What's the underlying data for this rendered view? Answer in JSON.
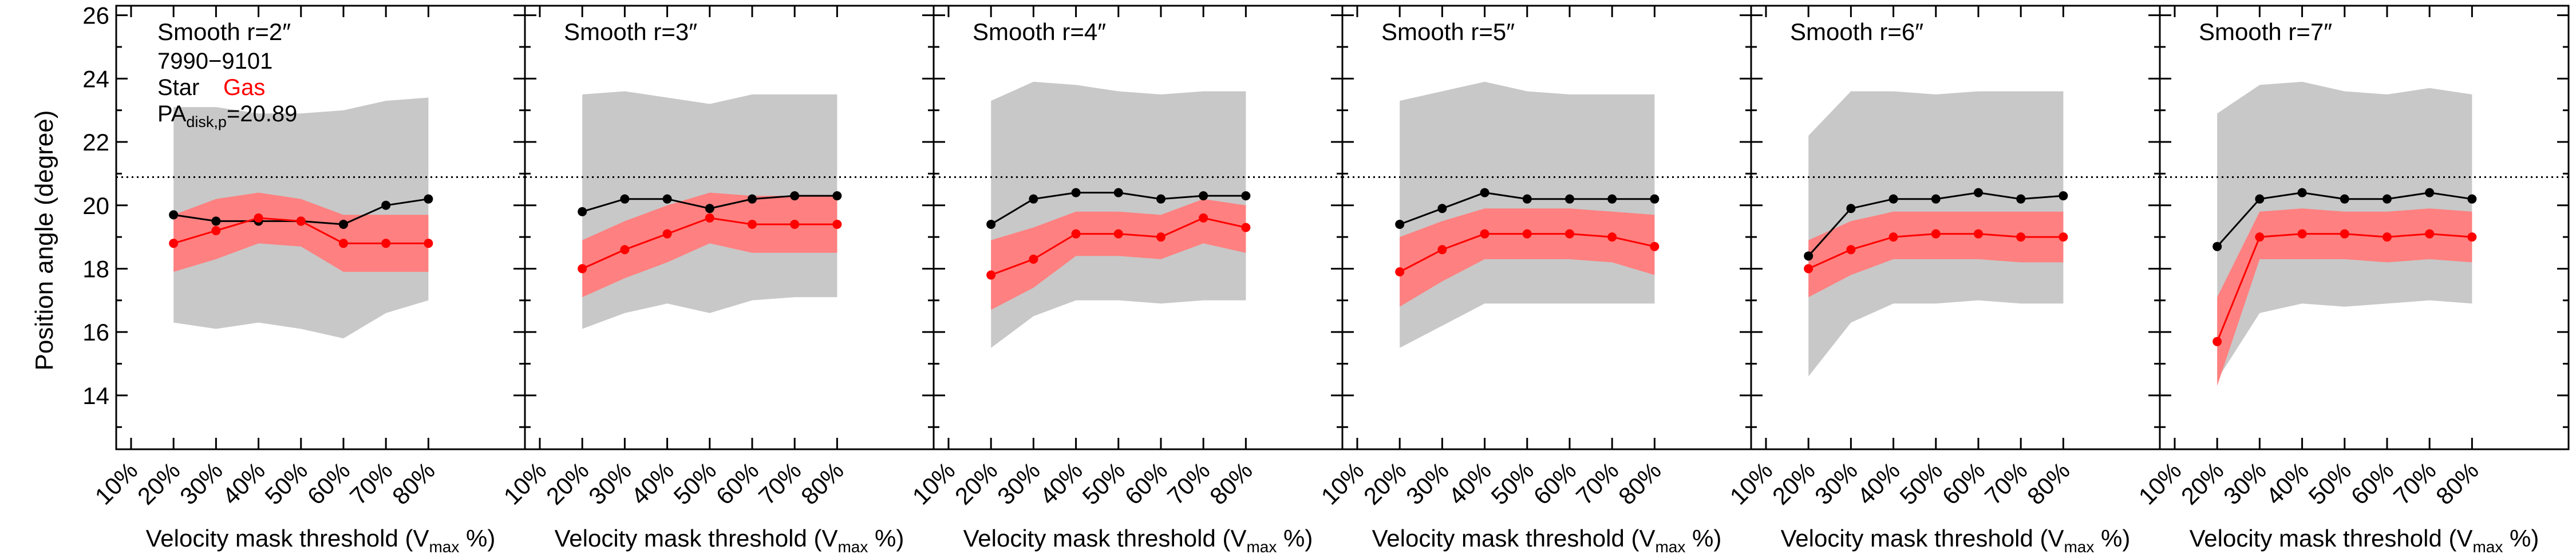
{
  "figure": {
    "ylabel": "Position angle (degree)",
    "xlabel_main": "Velocity mask threshold (V",
    "xlabel_sub": "max",
    "xlabel_tail": " %)",
    "annotation": {
      "id_label": "7990−9101",
      "legend_star": "Star",
      "legend_gas": "Gas",
      "pa_main": "PA",
      "pa_sub": "disk,p",
      "pa_value": "=20.89"
    },
    "colors": {
      "star": "#000000",
      "gas": "#ff0000",
      "star_band": "#c8c8c8",
      "gas_band": "#ff8080"
    }
  },
  "chart_data": [
    {
      "type": "line",
      "title": "Smooth r=2″",
      "categories": [
        "10%",
        "20%",
        "30%",
        "40%",
        "50%",
        "60%",
        "70%",
        "80%"
      ],
      "ylim": [
        12.3,
        26.3
      ],
      "yticks": [
        14,
        16,
        18,
        20,
        22,
        24,
        26
      ],
      "reference_line": 20.89,
      "series": [
        {
          "name": "Star",
          "x": [
            20,
            30,
            40,
            50,
            60,
            70,
            80
          ],
          "values": [
            19.7,
            19.5,
            19.5,
            19.5,
            19.4,
            20.0,
            20.2
          ],
          "lower": [
            16.3,
            16.1,
            16.3,
            16.1,
            15.8,
            16.6,
            17.0
          ],
          "upper": [
            23.1,
            23.1,
            22.9,
            22.9,
            23.0,
            23.3,
            23.4
          ]
        },
        {
          "name": "Gas",
          "x": [
            20,
            30,
            40,
            50,
            60,
            70,
            80
          ],
          "values": [
            18.8,
            19.2,
            19.6,
            19.5,
            18.8,
            18.8,
            18.8
          ],
          "lower": [
            17.9,
            18.3,
            18.8,
            18.7,
            17.9,
            17.9,
            17.9
          ],
          "upper": [
            19.7,
            20.2,
            20.4,
            20.2,
            19.7,
            19.7,
            19.7
          ]
        }
      ]
    },
    {
      "type": "line",
      "title": "Smooth r=3″",
      "categories": [
        "10%",
        "20%",
        "30%",
        "40%",
        "50%",
        "60%",
        "70%",
        "80%"
      ],
      "ylim": [
        12.3,
        26.3
      ],
      "yticks": [
        14,
        16,
        18,
        20,
        22,
        24,
        26
      ],
      "reference_line": 20.89,
      "series": [
        {
          "name": "Star",
          "x": [
            20,
            30,
            40,
            50,
            60,
            70,
            80
          ],
          "values": [
            19.8,
            20.2,
            20.2,
            19.9,
            20.2,
            20.3,
            20.3
          ],
          "lower": [
            16.1,
            16.6,
            16.9,
            16.6,
            17.0,
            17.1,
            17.1
          ],
          "upper": [
            23.5,
            23.6,
            23.4,
            23.2,
            23.5,
            23.5,
            23.5
          ]
        },
        {
          "name": "Gas",
          "x": [
            20,
            30,
            40,
            50,
            60,
            70,
            80
          ],
          "values": [
            18.0,
            18.6,
            19.1,
            19.6,
            19.4,
            19.4,
            19.4
          ],
          "lower": [
            17.1,
            17.7,
            18.2,
            18.8,
            18.5,
            18.5,
            18.5
          ],
          "upper": [
            18.9,
            19.5,
            20.0,
            20.4,
            20.3,
            20.3,
            20.3
          ]
        }
      ]
    },
    {
      "type": "line",
      "title": "Smooth r=4″",
      "categories": [
        "10%",
        "20%",
        "30%",
        "40%",
        "50%",
        "60%",
        "70%",
        "80%"
      ],
      "ylim": [
        12.3,
        26.3
      ],
      "yticks": [
        14,
        16,
        18,
        20,
        22,
        24,
        26
      ],
      "reference_line": 20.89,
      "series": [
        {
          "name": "Star",
          "x": [
            20,
            30,
            40,
            50,
            60,
            70,
            80
          ],
          "values": [
            19.4,
            20.2,
            20.4,
            20.4,
            20.2,
            20.3,
            20.3
          ],
          "lower": [
            15.5,
            16.5,
            17.0,
            17.0,
            16.9,
            17.0,
            17.0
          ],
          "upper": [
            23.3,
            23.9,
            23.8,
            23.6,
            23.5,
            23.6,
            23.6
          ]
        },
        {
          "name": "Gas",
          "x": [
            20,
            30,
            40,
            50,
            60,
            70,
            80
          ],
          "values": [
            17.8,
            18.3,
            19.1,
            19.1,
            19.0,
            19.6,
            19.3
          ],
          "lower": [
            16.7,
            17.4,
            18.4,
            18.4,
            18.3,
            18.8,
            18.5
          ],
          "upper": [
            18.9,
            19.3,
            19.8,
            19.8,
            19.7,
            20.2,
            20.0
          ]
        }
      ]
    },
    {
      "type": "line",
      "title": "Smooth r=5″",
      "categories": [
        "10%",
        "20%",
        "30%",
        "40%",
        "50%",
        "60%",
        "70%",
        "80%"
      ],
      "ylim": [
        12.3,
        26.3
      ],
      "yticks": [
        14,
        16,
        18,
        20,
        22,
        24,
        26
      ],
      "reference_line": 20.89,
      "series": [
        {
          "name": "Star",
          "x": [
            20,
            30,
            40,
            50,
            60,
            70,
            80
          ],
          "values": [
            19.4,
            19.9,
            20.4,
            20.2,
            20.2,
            20.2,
            20.2
          ],
          "lower": [
            15.5,
            16.2,
            16.9,
            16.9,
            16.9,
            16.9,
            16.9
          ],
          "upper": [
            23.3,
            23.6,
            23.9,
            23.6,
            23.5,
            23.5,
            23.5
          ]
        },
        {
          "name": "Gas",
          "x": [
            20,
            30,
            40,
            50,
            60,
            70,
            80
          ],
          "values": [
            17.9,
            18.6,
            19.1,
            19.1,
            19.1,
            19.0,
            18.7
          ],
          "lower": [
            16.8,
            17.6,
            18.3,
            18.3,
            18.3,
            18.2,
            17.8
          ],
          "upper": [
            19.0,
            19.5,
            19.9,
            19.9,
            19.9,
            19.8,
            19.7
          ]
        }
      ]
    },
    {
      "type": "line",
      "title": "Smooth r=6″",
      "categories": [
        "10%",
        "20%",
        "30%",
        "40%",
        "50%",
        "60%",
        "70%",
        "80%"
      ],
      "ylim": [
        12.3,
        26.3
      ],
      "yticks": [
        14,
        16,
        18,
        20,
        22,
        24,
        26
      ],
      "reference_line": 20.89,
      "series": [
        {
          "name": "Star",
          "x": [
            20,
            30,
            40,
            50,
            60,
            70,
            80
          ],
          "values": [
            18.4,
            19.9,
            20.2,
            20.2,
            20.4,
            20.2,
            20.3
          ],
          "lower": [
            14.6,
            16.3,
            16.9,
            16.9,
            17.0,
            16.9,
            16.9
          ],
          "upper": [
            22.2,
            23.6,
            23.6,
            23.5,
            23.6,
            23.6,
            23.6
          ]
        },
        {
          "name": "Gas",
          "x": [
            20,
            30,
            40,
            50,
            60,
            70,
            80
          ],
          "values": [
            18.0,
            18.6,
            19.0,
            19.1,
            19.1,
            19.0,
            19.0
          ],
          "lower": [
            17.1,
            17.8,
            18.3,
            18.3,
            18.3,
            18.2,
            18.2
          ],
          "upper": [
            18.9,
            19.5,
            19.8,
            19.8,
            19.8,
            19.8,
            19.8
          ]
        }
      ]
    },
    {
      "type": "line",
      "title": "Smooth r=7″",
      "categories": [
        "10%",
        "20%",
        "30%",
        "40%",
        "50%",
        "60%",
        "70%",
        "80%"
      ],
      "ylim": [
        12.3,
        26.3
      ],
      "yticks": [
        14,
        16,
        18,
        20,
        22,
        24,
        26
      ],
      "reference_line": 20.89,
      "series": [
        {
          "name": "Star",
          "x": [
            20,
            30,
            40,
            50,
            60,
            70,
            80
          ],
          "values": [
            18.7,
            20.2,
            20.4,
            20.2,
            20.2,
            20.4,
            20.2
          ],
          "lower": [
            14.5,
            16.6,
            16.9,
            16.8,
            16.9,
            17.0,
            16.9
          ],
          "upper": [
            22.9,
            23.8,
            23.9,
            23.6,
            23.5,
            23.7,
            23.5
          ]
        },
        {
          "name": "Gas",
          "x": [
            20,
            30,
            40,
            50,
            60,
            70,
            80
          ],
          "values": [
            15.7,
            19.0,
            19.1,
            19.1,
            19.0,
            19.1,
            19.0
          ],
          "lower": [
            14.3,
            18.3,
            18.3,
            18.3,
            18.2,
            18.3,
            18.2
          ],
          "upper": [
            17.1,
            19.8,
            19.9,
            19.8,
            19.8,
            19.9,
            19.8
          ]
        }
      ]
    }
  ]
}
